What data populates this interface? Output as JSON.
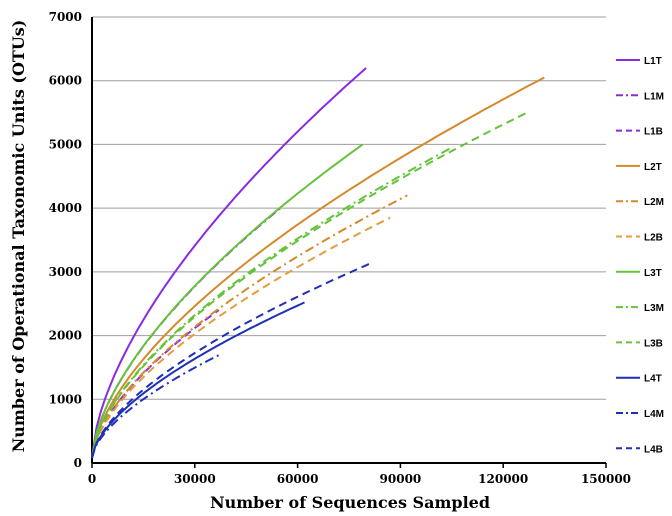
{
  "chart_data": {
    "type": "line",
    "title": "",
    "xlabel": "Number of Sequences Sampled",
    "ylabel": "Number of Operational Taxonomic Units (OTUs)",
    "xlim": [
      0,
      150000
    ],
    "ylim": [
      0,
      7000
    ],
    "xticks": [
      0,
      30000,
      60000,
      90000,
      120000,
      150000
    ],
    "yticks": [
      0,
      1000,
      2000,
      3000,
      4000,
      5000,
      6000,
      7000
    ],
    "horizontal_grid": true,
    "legend_position": "right",
    "series": [
      {
        "name": "L1T",
        "color": "#8A2BE2",
        "dash": "solid",
        "x_max": 80000,
        "y_end": 6200
      },
      {
        "name": "L1M",
        "color": "#8A2BE2",
        "dash": "dashdot",
        "x_max": 55000,
        "y_end": 4000
      },
      {
        "name": "L1B",
        "color": "#8A2BE2",
        "dash": "dashed",
        "x_max": 37000,
        "y_end": 2400
      },
      {
        "name": "L2T",
        "color": "#D4892B",
        "dash": "solid",
        "x_max": 132000,
        "y_end": 6050
      },
      {
        "name": "L2M",
        "color": "#D4892B",
        "dash": "dashdot",
        "x_max": 92000,
        "y_end": 4200
      },
      {
        "name": "L2B",
        "color": "#E59B3F",
        "dash": "dashed",
        "x_max": 87000,
        "y_end": 3850
      },
      {
        "name": "L3T",
        "color": "#66C23A",
        "dash": "solid",
        "x_max": 79000,
        "y_end": 5000
      },
      {
        "name": "L3M",
        "color": "#66C23A",
        "dash": "dashdot",
        "x_max": 105000,
        "y_end": 4950
      },
      {
        "name": "L3B",
        "color": "#66C23A",
        "dash": "dashed",
        "x_max": 127000,
        "y_end": 5500
      },
      {
        "name": "L4T",
        "color": "#1F2FB8",
        "dash": "solid",
        "x_max": 62000,
        "y_end": 2520
      },
      {
        "name": "L4M",
        "color": "#1F2FB8",
        "dash": "dashdot",
        "x_max": 38000,
        "y_end": 1720
      },
      {
        "name": "L4B",
        "color": "#1F2FB8",
        "dash": "dashed",
        "x_max": 82000,
        "y_end": 3150
      }
    ]
  }
}
